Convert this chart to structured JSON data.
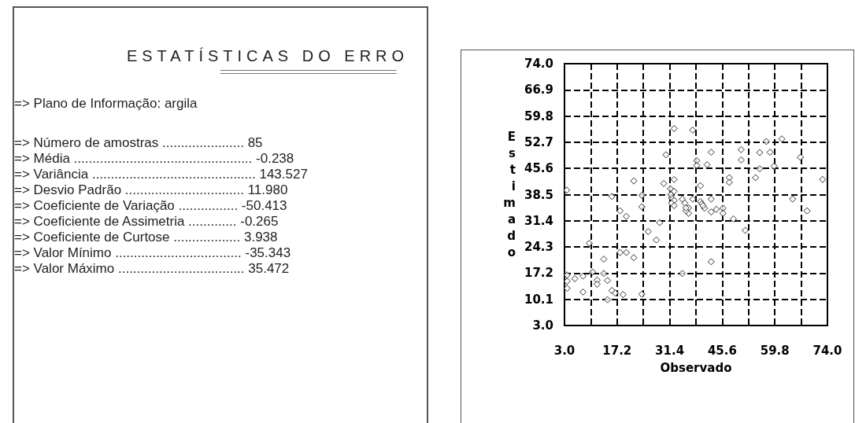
{
  "chart_data": [
    {
      "type": "other",
      "title": "ESTATÍSTICAS DO ERRO",
      "annotations": [
        "=> Plano de Informação: argila",
        "=> Número de amostras ...................... 85",
        "=> Média ................................................ -0.238",
        "=> Variância ............................................ 143.527",
        "=> Desvio Padrão ................................ 11.980",
        "=> Coeficiente de Variação ................ -50.413",
        "=> Coeficiente de Assimetria ............. -0.265",
        "=> Coeficiente de Curtose .................. 3.938",
        "=> Valor Mínimo .................................. -35.343",
        "=> Valor Máximo .................................. 35.472"
      ]
    },
    {
      "type": "scatter",
      "xlabel": "Observado",
      "ylabel": "Estimado",
      "marker": "diamond",
      "line_style": "dashed",
      "grid": true,
      "xlim": [
        3,
        74
      ],
      "ylim": [
        3,
        74
      ],
      "xticks": [
        {
          "value": 3,
          "label": "3.0"
        },
        {
          "value": 10.1,
          "label": null
        },
        {
          "value": 17.2,
          "label": "17.2"
        },
        {
          "value": 24.3,
          "label": null
        },
        {
          "value": 31.4,
          "label": "31.4"
        },
        {
          "value": 38.5,
          "label": null
        },
        {
          "value": 45.6,
          "label": "45.6"
        },
        {
          "value": 52.7,
          "label": null
        },
        {
          "value": 59.8,
          "label": "59.8"
        },
        {
          "value": 66.9,
          "label": null
        },
        {
          "value": 74,
          "label": "74.0"
        }
      ],
      "yticks": [
        {
          "value": 3,
          "label": "3.0"
        },
        {
          "value": 10.1,
          "label": "10.1"
        },
        {
          "value": 17.2,
          "label": "17.2"
        },
        {
          "value": 24.3,
          "label": "24.3"
        },
        {
          "value": 31.4,
          "label": "31.4"
        },
        {
          "value": 38.5,
          "label": "38.5"
        },
        {
          "value": 45.6,
          "label": "45.6"
        },
        {
          "value": 52.7,
          "label": "52.7"
        },
        {
          "value": 59.8,
          "label": "59.8"
        },
        {
          "value": 66.9,
          "label": "66.9"
        },
        {
          "value": 74,
          "label": "74.0"
        }
      ],
      "series": [
        {
          "color": "#000000",
          "x": [
            32.6,
            37.6,
            30.4,
            38.7,
            38.7,
            41.5,
            42.6,
            50.7,
            50.7,
            55.7,
            57.5,
            58.5,
            61.7,
            59.6,
            55.7,
            54.6,
            66.7,
            47.5,
            47.5,
            72.7,
            64.6,
            68.5,
            51.8,
            48.6,
            45.8,
            45.8,
            42.6,
            42.6,
            39.7,
            37.6,
            39.7,
            40.1,
            40.8,
            36.5,
            36.5,
            35.8,
            35.5,
            34.8,
            32.6,
            29.8,
            31.6,
            32.6,
            31.9,
            32.6,
            31.9,
            32.6,
            21.7,
            23.9,
            23.9,
            15.8,
            18.0,
            19.7,
            28.7,
            25.6,
            27.8,
            9.7,
            13.6,
            18.0,
            19.7,
            21.7,
            42.6,
            34.8,
            3.6,
            3.7,
            3.7,
            5.8,
            8.0,
            8.0,
            10.6,
            11.8,
            11.8,
            13.6,
            14.6,
            15.8,
            16.7,
            14.6,
            18.8,
            23.9,
            3.7,
            31.7,
            44.0,
            35.8,
            40.4
          ],
          "values": [
            56.4,
            56.0,
            49.3,
            47.7,
            46.4,
            46.6,
            50.0,
            50.7,
            47.9,
            49.9,
            52.9,
            50.0,
            53.6,
            46.2,
            45.5,
            43.1,
            48.6,
            43.1,
            41.8,
            42.6,
            37.3,
            34.1,
            28.8,
            31.9,
            34.8,
            33.4,
            33.8,
            37.3,
            40.9,
            37.3,
            36.6,
            36.0,
            34.8,
            34.9,
            33.4,
            34.1,
            36.2,
            37.3,
            42.6,
            41.5,
            40.1,
            39.4,
            37.6,
            36.9,
            36.2,
            35.5,
            42.2,
            38.3,
            35.2,
            38.0,
            34.1,
            32.6,
            30.9,
            28.5,
            26.2,
            25.3,
            21.0,
            22.8,
            22.8,
            21.4,
            20.3,
            17.1,
            39.7,
            16.7,
            13.1,
            15.7,
            16.4,
            12.1,
            17.5,
            15.3,
            14.2,
            17.1,
            15.2,
            12.5,
            11.8,
            10.0,
            11.4,
            11.5,
            15.0,
            38.5,
            34.5,
            34.9,
            35.5
          ]
        }
      ]
    }
  ]
}
